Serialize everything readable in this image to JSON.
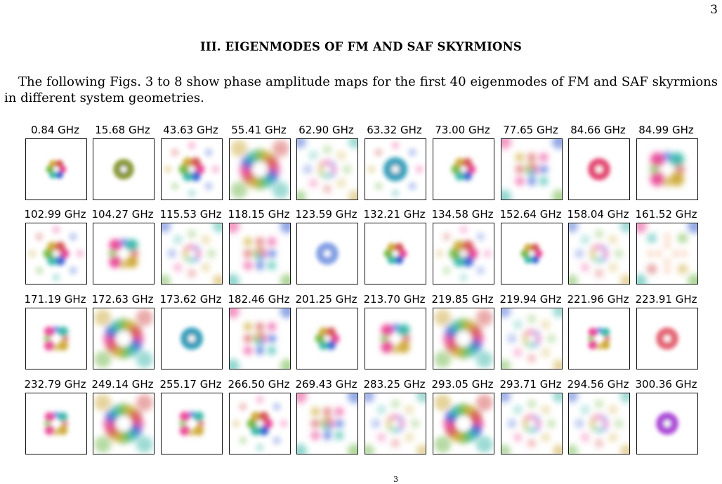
{
  "page_number": "3",
  "section_heading": "III.   EIGENMODES OF FM AND SAF SKYRMIONS",
  "paragraph": "The following Figs. 3 to 8 show phase amplitude maps for the first 40 eigenmodes of FM and SAF skyrmions in different system geometries.",
  "footnote_mark": "3",
  "figure": {
    "rows": [
      [
        {
          "label": "0.84 GHz",
          "pattern": "ring",
          "scale": 0.4
        },
        {
          "label": "15.68 GHz",
          "pattern": "ring",
          "scale": 0.4,
          "tint": "#7a8a1a"
        },
        {
          "label": "43.63 GHz",
          "pattern": "ring",
          "scale": 0.6
        },
        {
          "label": "55.41 GHz",
          "pattern": "halo",
          "scale": 1.0
        },
        {
          "label": "62.90 GHz",
          "pattern": "star",
          "scale": 1.0
        },
        {
          "label": "63.32 GHz",
          "pattern": "ring",
          "scale": 0.6,
          "tint": "#1890b0"
        },
        {
          "label": "73.00 GHz",
          "pattern": "ring",
          "scale": 0.55
        },
        {
          "label": "77.65 GHz",
          "pattern": "grid",
          "scale": 1.0
        },
        {
          "label": "84.66 GHz",
          "pattern": "ring",
          "scale": 0.5,
          "tint": "#e03060"
        },
        {
          "label": "84.99 GHz",
          "pattern": "quad",
          "scale": 1.0
        }
      ],
      [
        {
          "label": "102.99 GHz",
          "pattern": "ring",
          "scale": 0.6
        },
        {
          "label": "104.27 GHz",
          "pattern": "quad",
          "scale": 0.8
        },
        {
          "label": "115.53 GHz",
          "pattern": "star",
          "scale": 0.9
        },
        {
          "label": "118.15 GHz",
          "pattern": "grid",
          "scale": 1.0
        },
        {
          "label": "123.59 GHz",
          "pattern": "ring",
          "scale": 0.5,
          "tint": "#7090e0"
        },
        {
          "label": "132.21 GHz",
          "pattern": "ring",
          "scale": 0.5
        },
        {
          "label": "134.58 GHz",
          "pattern": "ring",
          "scale": 0.7
        },
        {
          "label": "152.64 GHz",
          "pattern": "ring",
          "scale": 0.45
        },
        {
          "label": "158.04 GHz",
          "pattern": "star",
          "scale": 1.0
        },
        {
          "label": "161.52 GHz",
          "pattern": "cross",
          "scale": 1.0
        }
      ],
      [
        {
          "label": "171.19 GHz",
          "pattern": "quad",
          "scale": 0.6
        },
        {
          "label": "172.63 GHz",
          "pattern": "halo",
          "scale": 0.9
        },
        {
          "label": "173.62 GHz",
          "pattern": "ring",
          "scale": 0.5,
          "tint": "#1890b0"
        },
        {
          "label": "182.46 GHz",
          "pattern": "grid",
          "scale": 0.9
        },
        {
          "label": "201.25 GHz",
          "pattern": "ring",
          "scale": 0.55
        },
        {
          "label": "213.70 GHz",
          "pattern": "quad",
          "scale": 0.8
        },
        {
          "label": "219.85 GHz",
          "pattern": "halo",
          "scale": 1.0
        },
        {
          "label": "219.94 GHz",
          "pattern": "star",
          "scale": 1.0
        },
        {
          "label": "221.96 GHz",
          "pattern": "quad",
          "scale": 0.5
        },
        {
          "label": "223.91 GHz",
          "pattern": "ring",
          "scale": 0.5,
          "tint": "#e05060"
        }
      ],
      [
        {
          "label": "232.79 GHz",
          "pattern": "quad",
          "scale": 0.55
        },
        {
          "label": "249.14 GHz",
          "pattern": "halo",
          "scale": 0.9
        },
        {
          "label": "255.17 GHz",
          "pattern": "quad",
          "scale": 0.6
        },
        {
          "label": "266.50 GHz",
          "pattern": "ring",
          "scale": 0.6
        },
        {
          "label": "269.43 GHz",
          "pattern": "grid",
          "scale": 1.0
        },
        {
          "label": "283.25 GHz",
          "pattern": "star",
          "scale": 1.0
        },
        {
          "label": "293.05 GHz",
          "pattern": "halo",
          "scale": 0.8
        },
        {
          "label": "293.71 GHz",
          "pattern": "star",
          "scale": 0.9
        },
        {
          "label": "294.56 GHz",
          "pattern": "star",
          "scale": 1.0
        },
        {
          "label": "300.36 GHz",
          "pattern": "ring",
          "scale": 0.5,
          "tint": "#a030d0"
        }
      ]
    ],
    "palette": [
      "#e8308a",
      "#2050d0",
      "#20b0a0",
      "#60b030",
      "#c8a020",
      "#d04040"
    ]
  }
}
